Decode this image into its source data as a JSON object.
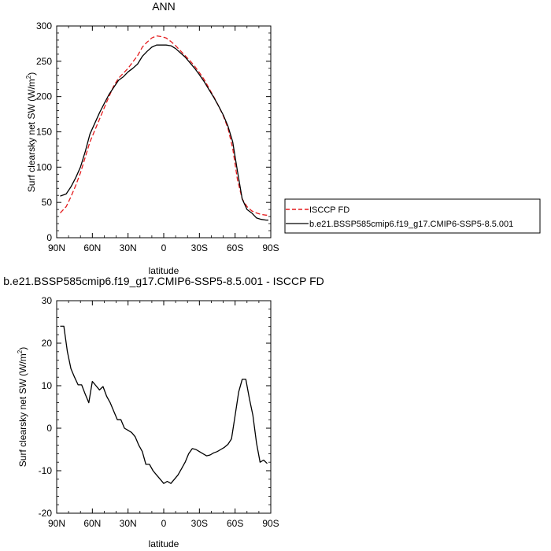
{
  "chart_data": [
    {
      "type": "line",
      "title": "ANN",
      "xlabel": "latitude",
      "ylabel": "Surf clearsky net SW (W/m²)",
      "xlim": [
        90,
        -90
      ],
      "ylim": [
        0,
        300
      ],
      "xticks": [
        90,
        60,
        30,
        0,
        -30,
        -60,
        -90
      ],
      "xtick_labels": [
        "90N",
        "60N",
        "30N",
        "0",
        "30S",
        "60S",
        "90S"
      ],
      "yticks": [
        0,
        50,
        100,
        150,
        200,
        250,
        300
      ],
      "ytick_labels": [
        "0",
        "50",
        "100",
        "150",
        "200",
        "250",
        "300"
      ],
      "grid": false,
      "legend_position": "right",
      "series": [
        {
          "name": "ISCCP FD",
          "color": "#e41a1c",
          "dash": "dashed",
          "x": [
            87,
            82,
            78,
            74,
            70,
            66,
            62,
            58,
            54,
            50,
            46,
            42,
            38,
            34,
            30,
            26,
            22,
            18,
            14,
            10,
            6,
            2,
            -2,
            -6,
            -10,
            -14,
            -18,
            -22,
            -26,
            -30,
            -34,
            -38,
            -42,
            -46,
            -50,
            -54,
            -58,
            -62,
            -66,
            -70,
            -74,
            -78,
            -82,
            -86,
            -88
          ],
          "y": [
            35,
            44,
            58,
            74,
            92,
            114,
            136,
            152,
            168,
            184,
            200,
            215,
            226,
            233,
            240,
            249,
            258,
            270,
            277,
            283,
            286,
            285,
            283,
            278,
            272,
            265,
            258,
            251,
            243,
            234,
            224,
            212,
            200,
            187,
            173,
            155,
            127,
            82,
            55,
            44,
            38,
            35,
            33,
            32,
            32
          ]
        },
        {
          "name": "b.e21.BSSP585cmip6.f19_g17.CMIP6-SSP5-8.5.001",
          "color": "#000000",
          "dash": "solid",
          "x": [
            87,
            82,
            78,
            74,
            70,
            66,
            62,
            58,
            54,
            50,
            46,
            42,
            38,
            34,
            30,
            26,
            22,
            18,
            14,
            10,
            6,
            2,
            -2,
            -6,
            -10,
            -14,
            -18,
            -22,
            -26,
            -30,
            -34,
            -38,
            -42,
            -46,
            -50,
            -54,
            -58,
            -62,
            -66,
            -70,
            -74,
            -78,
            -82,
            -86,
            -88
          ],
          "y": [
            59,
            62,
            72,
            85,
            100,
            122,
            147,
            162,
            177,
            190,
            203,
            213,
            223,
            228,
            235,
            240,
            246,
            257,
            264,
            270,
            273,
            273,
            273,
            272,
            268,
            262,
            256,
            248,
            240,
            231,
            221,
            210,
            199,
            187,
            174,
            158,
            136,
            94,
            55,
            40,
            35,
            28,
            26,
            25,
            25
          ]
        }
      ]
    },
    {
      "type": "line",
      "title": "b.e21.BSSP585cmip6.f19_g17.CMIP6-SSP5-8.5.001 - ISCCP FD",
      "xlabel": "latitude",
      "ylabel": "Surf clearsky net SW (W/m²)",
      "xlim": [
        90,
        -90
      ],
      "ylim": [
        -20,
        30
      ],
      "xticks": [
        90,
        60,
        30,
        0,
        -30,
        -60,
        -90
      ],
      "xtick_labels": [
        "90N",
        "60N",
        "30N",
        "0",
        "30S",
        "60S",
        "90S"
      ],
      "yticks": [
        -20,
        -10,
        0,
        10,
        20,
        30
      ],
      "ytick_labels": [
        "-20",
        "-10",
        "0",
        "10",
        "20",
        "30"
      ],
      "grid": false,
      "series": [
        {
          "color": "#000000",
          "dash": "solid",
          "x": [
            87,
            84,
            81,
            78,
            75,
            72,
            69,
            66,
            63,
            60,
            57,
            54,
            51,
            48,
            45,
            42,
            39,
            36,
            33,
            30,
            27,
            24,
            21,
            18,
            15,
            12,
            9,
            6,
            3,
            0,
            -3,
            -6,
            -9,
            -12,
            -15,
            -18,
            -21,
            -24,
            -27,
            -30,
            -33,
            -36,
            -39,
            -42,
            -45,
            -48,
            -51,
            -54,
            -57,
            -60,
            -63,
            -66,
            -69,
            -72,
            -75,
            -78,
            -81,
            -84,
            -87
          ],
          "y": [
            24,
            24,
            18,
            14,
            12,
            10.2,
            10.2,
            8,
            6,
            11,
            10,
            9,
            9.8,
            7.5,
            6,
            4,
            2,
            2,
            0,
            -0.5,
            -1,
            -2,
            -4,
            -5.5,
            -8.5,
            -8.5,
            -10,
            -11,
            -12,
            -13,
            -12.5,
            -13,
            -12,
            -11,
            -9.5,
            -8,
            -6,
            -4.8,
            -5,
            -5.5,
            -6,
            -6.5,
            -6.3,
            -5.8,
            -5.5,
            -5,
            -4.5,
            -3.8,
            -2.5,
            3,
            8.5,
            11.5,
            11.5,
            7,
            3,
            -3.5,
            -8,
            -7.5,
            -8.3
          ]
        }
      ]
    }
  ]
}
